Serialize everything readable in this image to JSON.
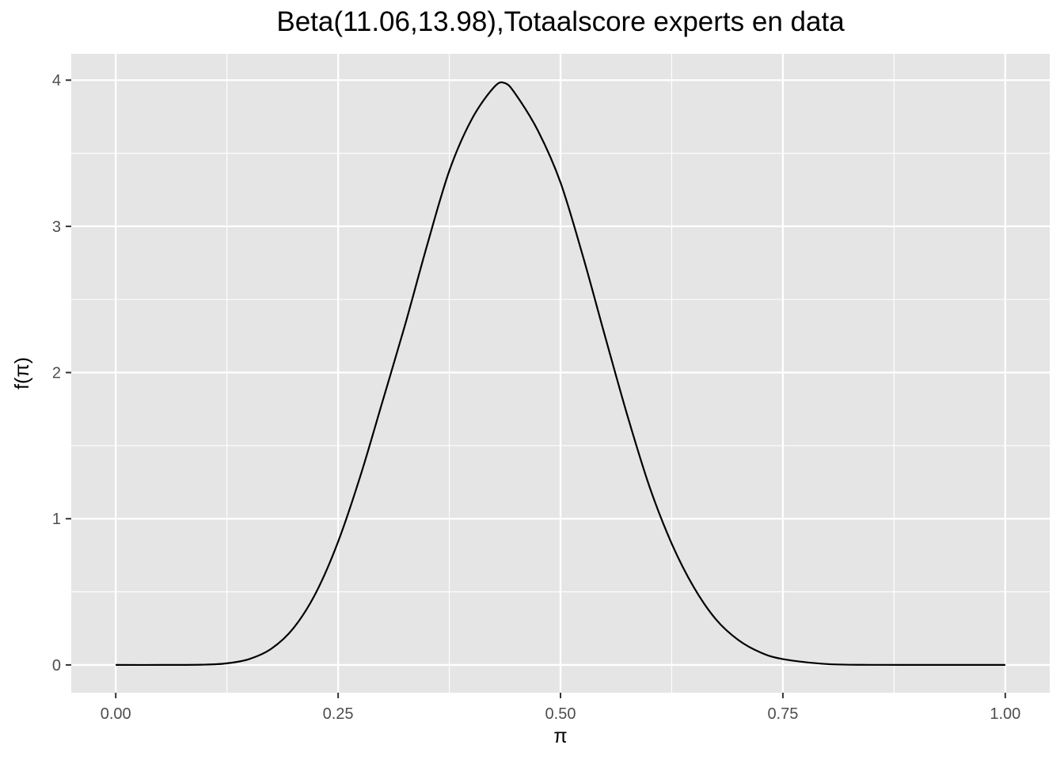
{
  "chart_data": {
    "type": "line",
    "title": "Beta(11.06,13.98),Totaalscore experts en data",
    "xlabel": "π",
    "ylabel": "f(π)",
    "distribution": {
      "name": "Beta",
      "alpha": 11.06,
      "beta": 13.98
    },
    "xlim": [
      -0.05,
      1.05
    ],
    "ylim": [
      -0.19,
      4.18
    ],
    "x_ticks": [
      0.0,
      0.25,
      0.5,
      0.75,
      1.0
    ],
    "x_tick_labels": [
      "0.00",
      "0.25",
      "0.50",
      "0.75",
      "1.00"
    ],
    "y_ticks": [
      0,
      1,
      2,
      3,
      4
    ],
    "y_tick_labels": [
      "0",
      "1",
      "2",
      "3",
      "4"
    ],
    "grid": true,
    "background": "#e5e5e5",
    "line_color": "#000000",
    "series": [
      {
        "x": [
          0.0,
          0.05,
          0.1,
          0.125,
          0.15,
          0.175,
          0.2,
          0.225,
          0.25,
          0.275,
          0.3,
          0.325,
          0.35,
          0.375,
          0.4,
          0.425,
          0.4375,
          0.45,
          0.475,
          0.5,
          0.525,
          0.55,
          0.575,
          0.6,
          0.625,
          0.65,
          0.675,
          0.7,
          0.725,
          0.75,
          0.8,
          0.85,
          0.9,
          0.95,
          1.0
        ],
        "y": [
          0.0,
          0.0,
          0.002,
          0.011,
          0.04,
          0.111,
          0.253,
          0.493,
          0.843,
          1.292,
          1.804,
          2.32,
          2.87,
          3.38,
          3.73,
          3.95,
          3.98,
          3.9,
          3.65,
          3.3,
          2.8,
          2.25,
          1.71,
          1.22,
          0.83,
          0.53,
          0.31,
          0.17,
          0.085,
          0.04,
          0.006,
          0.0006,
          0.0,
          0.0,
          0.0
        ]
      }
    ]
  }
}
